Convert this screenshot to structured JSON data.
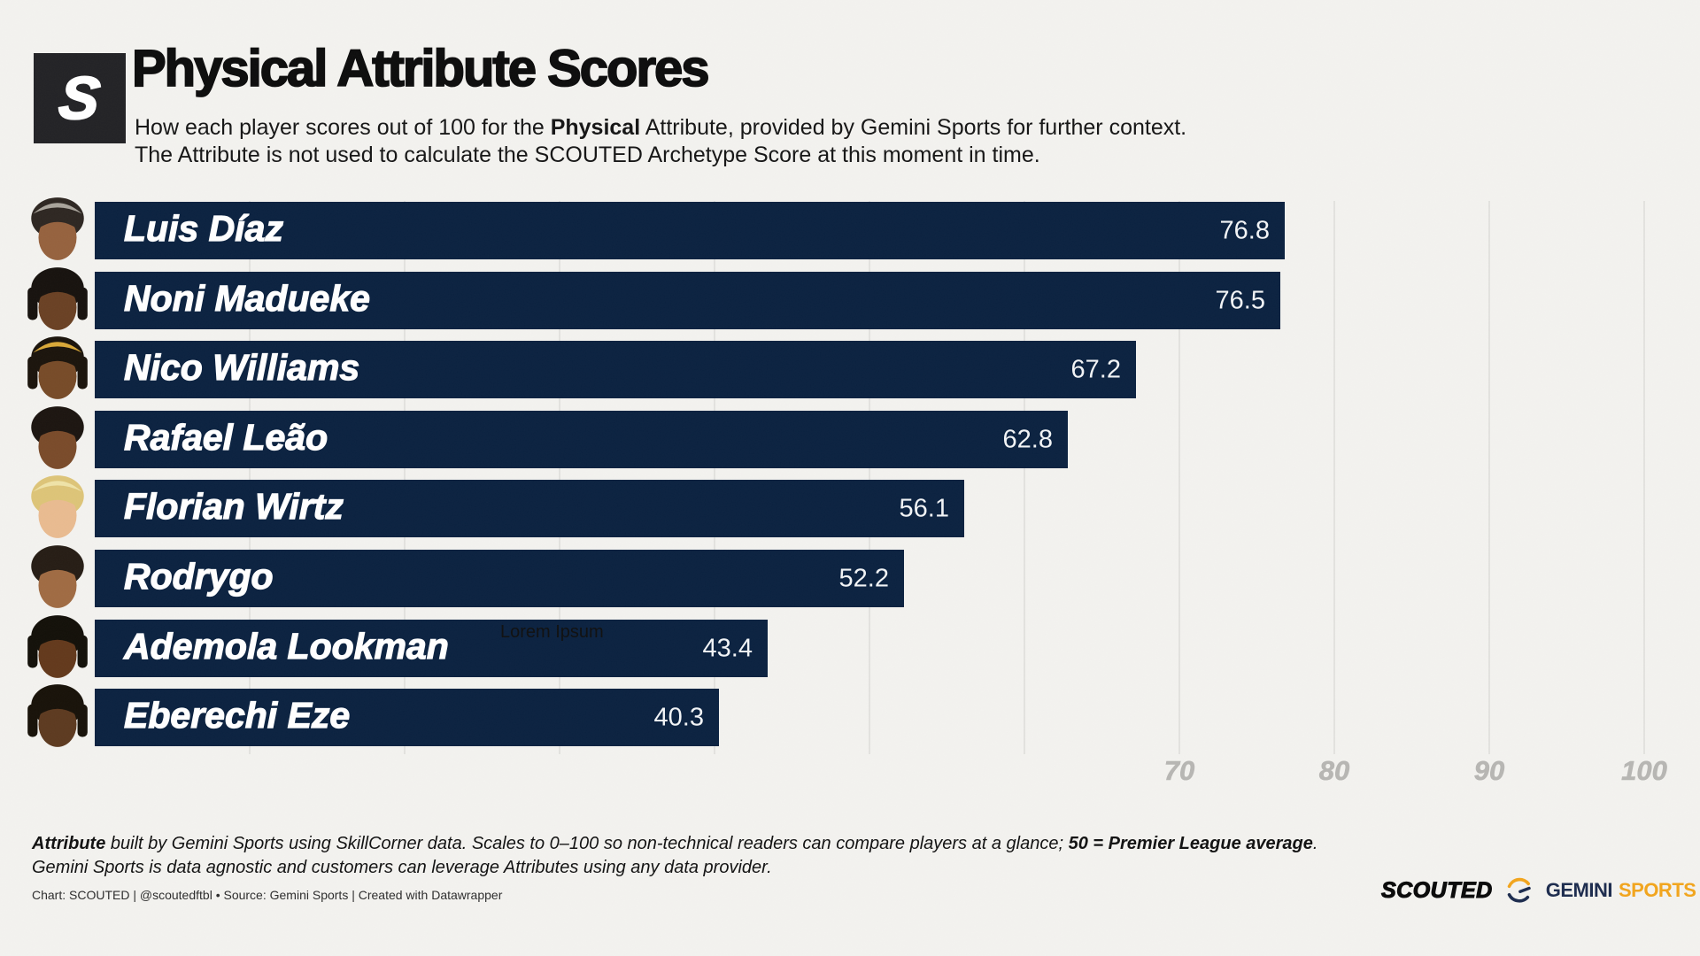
{
  "header": {
    "logo_letter": "S",
    "title": "Physical Attribute Scores",
    "subtitle_line1_pre": "How each player scores out of 100 for the ",
    "subtitle_line1_bold": "Physical",
    "subtitle_line1_post": " Attribute, provided by Gemini Sports for further context.",
    "subtitle_line2": "The Attribute is not used to calculate the SCOUTED Archetype Score at this moment in time."
  },
  "chart_data": {
    "type": "bar",
    "orientation": "horizontal",
    "title": "Physical Attribute Scores",
    "xlim": [
      0,
      100
    ],
    "grid": true,
    "gridline_values": [
      10,
      20,
      30,
      40,
      50,
      60,
      70,
      80,
      90,
      100
    ],
    "axis_ticks": [
      {
        "value": 70,
        "label": "70"
      },
      {
        "value": 80,
        "label": "80"
      },
      {
        "value": 90,
        "label": "90"
      },
      {
        "value": 100,
        "label": "100"
      }
    ],
    "bar_color": "#0b2240",
    "categories": [
      "Luis Díaz",
      "Noni Madueke",
      "Nico Williams",
      "Rafael Leão",
      "Florian Wirtz",
      "Rodrygo",
      "Ademola Lookman",
      "Eberechi Eze"
    ],
    "values": [
      76.8,
      76.5,
      67.2,
      62.8,
      56.1,
      52.2,
      43.4,
      40.3
    ],
    "players": [
      {
        "name": "Luis Díaz",
        "value": 76.8,
        "label": "76.8",
        "avatar": {
          "skin": "#96623e",
          "hair": "#2e2722",
          "tip": "#a9a49b",
          "locks": false
        }
      },
      {
        "name": "Noni Madueke",
        "value": 76.5,
        "label": "76.5",
        "avatar": {
          "skin": "#6a4124",
          "hair": "#17120e",
          "tip": "",
          "locks": true
        }
      },
      {
        "name": "Nico Williams",
        "value": 67.2,
        "label": "67.2",
        "avatar": {
          "skin": "#774b28",
          "hair": "#1b140c",
          "tip": "#d9a838",
          "locks": true
        }
      },
      {
        "name": "Rafael Leão",
        "value": 62.8,
        "label": "62.8",
        "avatar": {
          "skin": "#7a4b2a",
          "hair": "#1c1510",
          "tip": "",
          "locks": false
        }
      },
      {
        "name": "Florian Wirtz",
        "value": 56.1,
        "label": "56.1",
        "avatar": {
          "skin": "#e9bb90",
          "hair": "#ddc478",
          "tip": "#efe3a8",
          "locks": false
        }
      },
      {
        "name": "Rodrygo",
        "value": 52.2,
        "label": "52.2",
        "avatar": {
          "skin": "#a06b43",
          "hair": "#261d15",
          "tip": "",
          "locks": false
        }
      },
      {
        "name": "Ademola Lookman",
        "value": 43.4,
        "label": "43.4",
        "avatar": {
          "skin": "#63391c",
          "hair": "#131009",
          "tip": "",
          "locks": true
        }
      },
      {
        "name": "Eberechi Eze",
        "value": 40.3,
        "label": "40.3",
        "avatar": {
          "skin": "#5d3a20",
          "hair": "#181209",
          "tip": "",
          "locks": true
        }
      }
    ],
    "annotation": {
      "text": "Lorem Ipsum"
    }
  },
  "footer": {
    "note_bold1": "Attribute",
    "note_mid": " built by Gemini Sports using SkillCorner data. Scales to 0–100 so non-technical readers can compare players at a glance; ",
    "note_bold2": "50 = Premier League average",
    "note_end": ".",
    "note_line2": "Gemini Sports is data agnostic and customers can leverage Attributes using any data provider.",
    "credit": "Chart: SCOUTED | @scoutedftbl • Source: Gemini Sports | Created with Datawrapper"
  },
  "branding": {
    "scouted": "SCOUTED",
    "gemini_word1": "GEMINI",
    "gemini_word2": "SPORTS",
    "yellow": "#f2a51d",
    "navy": "#1d2c4e"
  }
}
